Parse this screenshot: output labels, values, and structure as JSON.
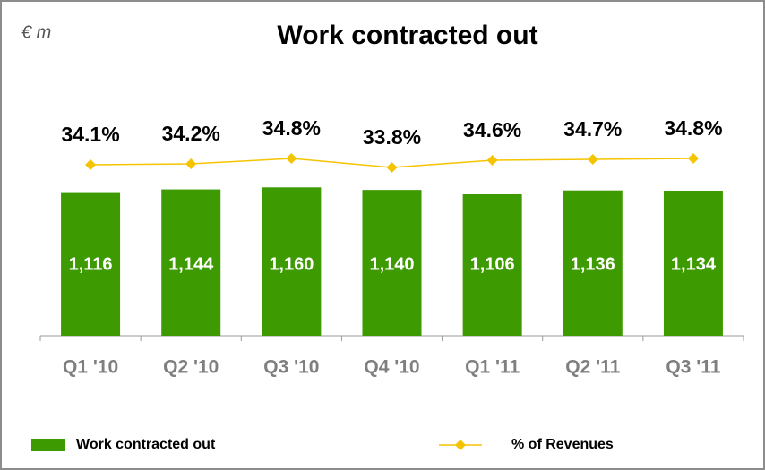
{
  "chart_data": {
    "type": "bar",
    "title": "Work contracted out",
    "unit_label": "€ m",
    "categories": [
      "Q1 '10",
      "Q2 '10",
      "Q3 '10",
      "Q4 '10",
      "Q1 '11",
      "Q2 '11",
      "Q3 '11"
    ],
    "series": [
      {
        "name": "Work contracted out",
        "type": "bar",
        "color": "#3d9a00",
        "values": [
          1116,
          1144,
          1160,
          1140,
          1106,
          1136,
          1134
        ],
        "value_labels": [
          "1,116",
          "1,144",
          "1,160",
          "1,140",
          "1,106",
          "1,136",
          "1,134"
        ]
      },
      {
        "name": "% of Revenues",
        "type": "line",
        "axis": "y2",
        "color": "#f5c400",
        "values": [
          34.1,
          34.2,
          34.8,
          33.8,
          34.6,
          34.7,
          34.8
        ],
        "value_labels": [
          "34.1%",
          "34.2%",
          "34.8%",
          "33.8%",
          "34.6%",
          "34.7%",
          "34.8%"
        ]
      }
    ],
    "ylim": [
      0,
      1400
    ],
    "y2lim": [
      15,
      35
    ],
    "legend": "bottom"
  }
}
